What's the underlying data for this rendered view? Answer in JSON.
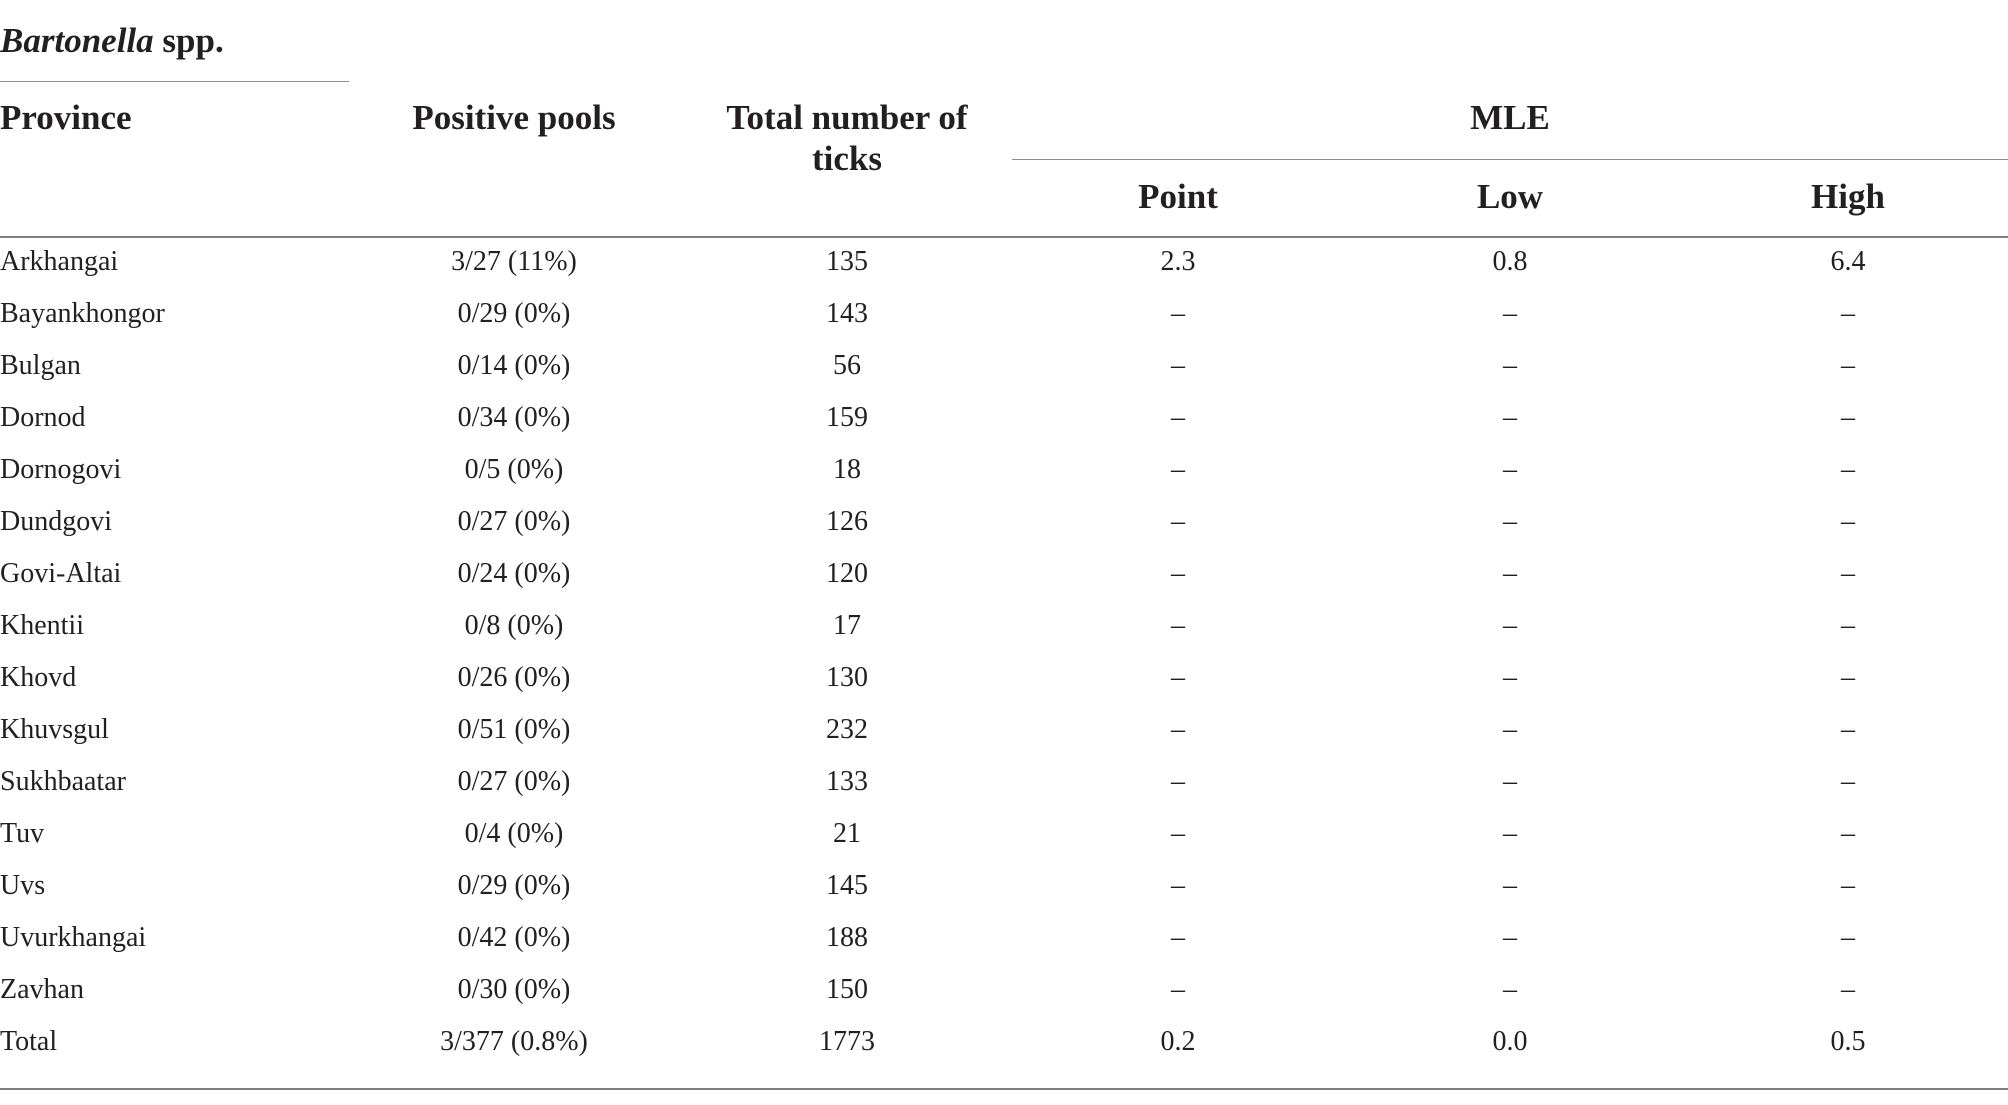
{
  "caption": {
    "genus": "Bartonella",
    "suffix": " spp."
  },
  "header": {
    "province": "Province",
    "positive_pools": "Positive pools",
    "total_ticks_line1": "Total number of",
    "total_ticks_line2": "ticks",
    "mle": "MLE",
    "point": "Point",
    "low": "Low",
    "high": "High"
  },
  "rows": [
    {
      "province": "Arkhangai",
      "positive_pools": "3/27 (11%)",
      "total_ticks": "135",
      "point": "2.3",
      "low": "0.8",
      "high": "6.4"
    },
    {
      "province": "Bayankhongor",
      "positive_pools": "0/29 (0%)",
      "total_ticks": "143",
      "point": "–",
      "low": "–",
      "high": "–"
    },
    {
      "province": "Bulgan",
      "positive_pools": "0/14 (0%)",
      "total_ticks": "56",
      "point": "–",
      "low": "–",
      "high": "–"
    },
    {
      "province": "Dornod",
      "positive_pools": "0/34 (0%)",
      "total_ticks": "159",
      "point": "–",
      "low": "–",
      "high": "–"
    },
    {
      "province": "Dornogovi",
      "positive_pools": "0/5 (0%)",
      "total_ticks": "18",
      "point": "–",
      "low": "–",
      "high": "–"
    },
    {
      "province": "Dundgovi",
      "positive_pools": "0/27 (0%)",
      "total_ticks": "126",
      "point": "–",
      "low": "–",
      "high": "–"
    },
    {
      "province": "Govi-Altai",
      "positive_pools": "0/24 (0%)",
      "total_ticks": "120",
      "point": "–",
      "low": "–",
      "high": "–"
    },
    {
      "province": "Khentii",
      "positive_pools": "0/8 (0%)",
      "total_ticks": "17",
      "point": "–",
      "low": "–",
      "high": "–"
    },
    {
      "province": "Khovd",
      "positive_pools": "0/26 (0%)",
      "total_ticks": "130",
      "point": "–",
      "low": "–",
      "high": "–"
    },
    {
      "province": "Khuvsgul",
      "positive_pools": "0/51 (0%)",
      "total_ticks": "232",
      "point": "–",
      "low": "–",
      "high": "–"
    },
    {
      "province": "Sukhbaatar",
      "positive_pools": "0/27 (0%)",
      "total_ticks": "133",
      "point": "–",
      "low": "–",
      "high": "–"
    },
    {
      "province": "Tuv",
      "positive_pools": "0/4 (0%)",
      "total_ticks": "21",
      "point": "–",
      "low": "–",
      "high": "–"
    },
    {
      "province": "Uvs",
      "positive_pools": "0/29 (0%)",
      "total_ticks": "145",
      "point": "–",
      "low": "–",
      "high": "–"
    },
    {
      "province": "Uvurkhangai",
      "positive_pools": "0/42 (0%)",
      "total_ticks": "188",
      "point": "–",
      "low": "–",
      "high": "–"
    },
    {
      "province": "Zavhan",
      "positive_pools": "0/30 (0%)",
      "total_ticks": "150",
      "point": "–",
      "low": "–",
      "high": "–"
    },
    {
      "province": "Total",
      "positive_pools": "3/377 (0.8%)",
      "total_ticks": "1773",
      "point": "0.2",
      "low": "0.0",
      "high": "0.5"
    }
  ]
}
